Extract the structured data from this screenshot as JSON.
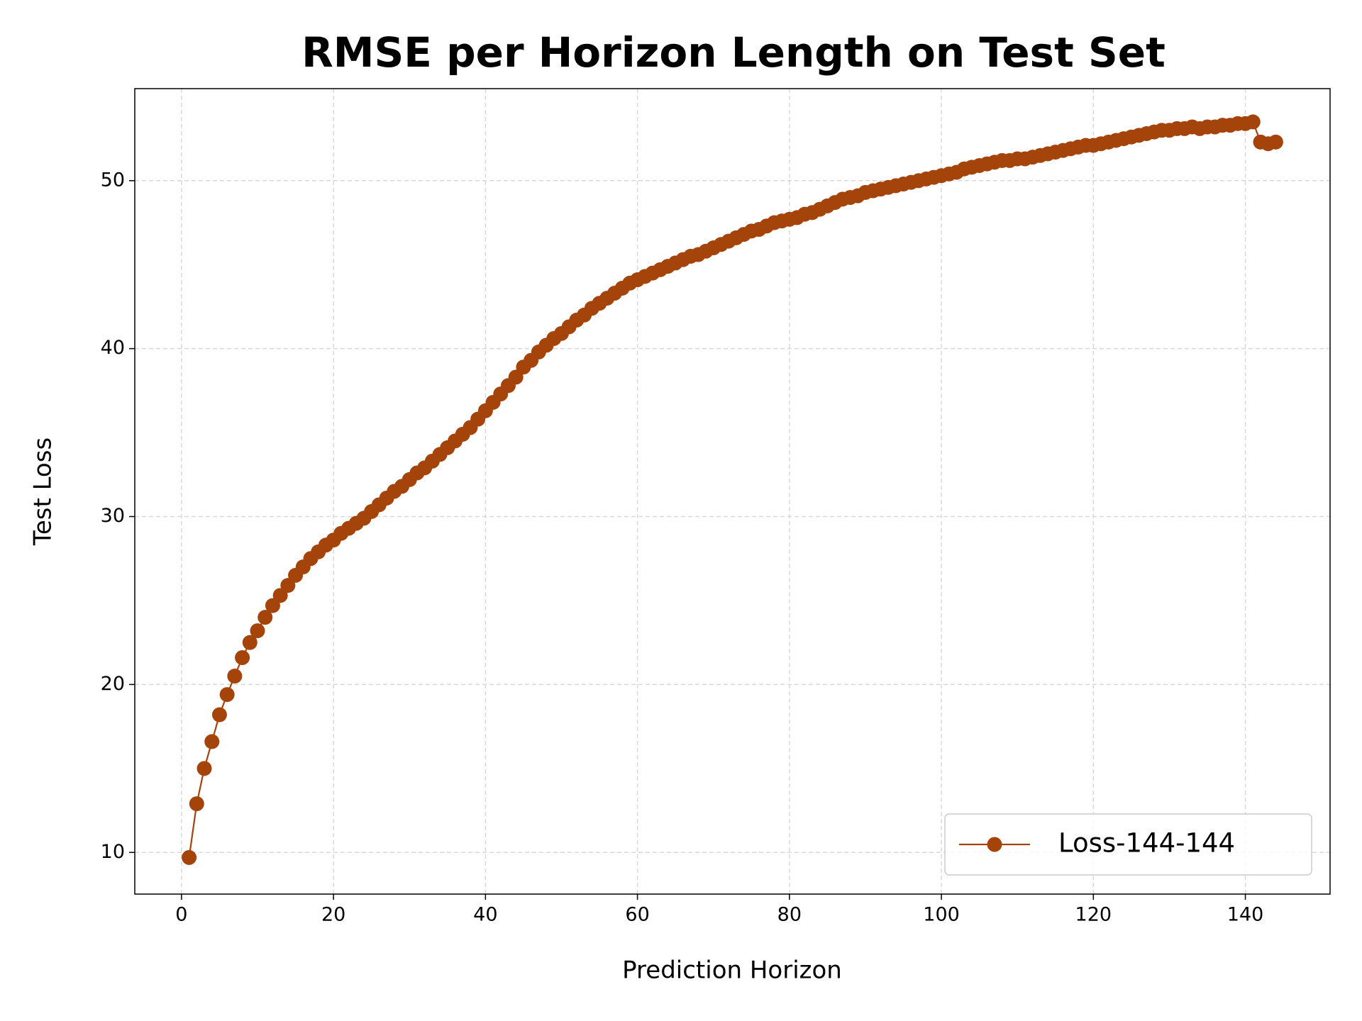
{
  "chart_data": {
    "type": "line",
    "title": "RMSE per Horizon Length on Test Set",
    "x_label": "Prediction Horizon",
    "y_label": "Test Loss",
    "x": [
      1,
      2,
      3,
      4,
      5,
      6,
      7,
      8,
      9,
      10,
      11,
      12,
      13,
      14,
      15,
      16,
      17,
      18,
      19,
      20,
      21,
      22,
      23,
      24,
      25,
      26,
      27,
      28,
      29,
      30,
      31,
      32,
      33,
      34,
      35,
      36,
      37,
      38,
      39,
      40,
      41,
      42,
      43,
      44,
      45,
      46,
      47,
      48,
      49,
      50,
      51,
      52,
      53,
      54,
      55,
      56,
      57,
      58,
      59,
      60,
      61,
      62,
      63,
      64,
      65,
      66,
      67,
      68,
      69,
      70,
      71,
      72,
      73,
      74,
      75,
      76,
      77,
      78,
      79,
      80,
      81,
      82,
      83,
      84,
      85,
      86,
      87,
      88,
      89,
      90,
      91,
      92,
      93,
      94,
      95,
      96,
      97,
      98,
      99,
      100,
      101,
      102,
      103,
      104,
      105,
      106,
      107,
      108,
      109,
      110,
      111,
      112,
      113,
      114,
      115,
      116,
      117,
      118,
      119,
      120,
      121,
      122,
      123,
      124,
      125,
      126,
      127,
      128,
      129,
      130,
      131,
      132,
      133,
      134,
      135,
      136,
      137,
      138,
      139,
      140,
      141,
      142,
      143,
      144
    ],
    "series": [
      {
        "name": "Loss-144-144",
        "color": "#a5440a",
        "marker": "o",
        "values": [
          9.7,
          12.9,
          15.0,
          16.6,
          18.2,
          19.4,
          20.5,
          21.6,
          22.5,
          23.2,
          24.0,
          24.7,
          25.3,
          25.9,
          26.5,
          27.0,
          27.5,
          27.9,
          28.3,
          28.6,
          29.0,
          29.3,
          29.6,
          29.9,
          30.3,
          30.7,
          31.1,
          31.5,
          31.8,
          32.2,
          32.6,
          32.9,
          33.3,
          33.7,
          34.1,
          34.5,
          34.9,
          35.3,
          35.8,
          36.3,
          36.8,
          37.3,
          37.8,
          38.3,
          38.9,
          39.3,
          39.8,
          40.2,
          40.6,
          40.9,
          41.3,
          41.7,
          42.0,
          42.4,
          42.7,
          43.0,
          43.3,
          43.6,
          43.9,
          44.1,
          44.3,
          44.5,
          44.7,
          44.9,
          45.1,
          45.3,
          45.5,
          45.6,
          45.8,
          46.0,
          46.2,
          46.4,
          46.6,
          46.8,
          47.0,
          47.1,
          47.3,
          47.5,
          47.6,
          47.7,
          47.8,
          48.0,
          48.1,
          48.3,
          48.5,
          48.7,
          48.9,
          49.0,
          49.1,
          49.3,
          49.4,
          49.5,
          49.6,
          49.7,
          49.8,
          49.9,
          50.0,
          50.1,
          50.2,
          50.3,
          50.4,
          50.5,
          50.7,
          50.8,
          50.9,
          51.0,
          51.1,
          51.2,
          51.2,
          51.3,
          51.3,
          51.4,
          51.5,
          51.6,
          51.7,
          51.8,
          51.9,
          52.0,
          52.1,
          52.1,
          52.2,
          52.3,
          52.4,
          52.5,
          52.6,
          52.7,
          52.8,
          52.9,
          53.0,
          53.0,
          53.1,
          53.1,
          53.2,
          53.1,
          53.2,
          53.2,
          53.3,
          53.3,
          53.4,
          53.4,
          53.5,
          52.3,
          52.2,
          52.3
        ]
      }
    ],
    "xlim": [
      -6.15,
      151.15
    ],
    "ylim": [
      7.52,
      55.48
    ],
    "xticks": [
      0,
      20,
      40,
      60,
      80,
      100,
      120,
      140
    ],
    "yticks": [
      10,
      20,
      30,
      40,
      50
    ],
    "grid": true,
    "legend": "lower right"
  }
}
